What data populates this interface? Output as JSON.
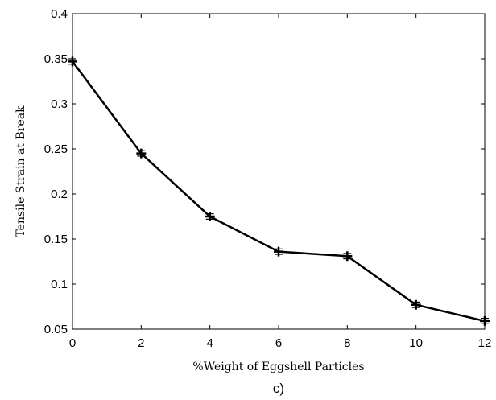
{
  "chart_data": {
    "type": "line",
    "title": "",
    "xlabel": "%Weight of Eggshell Particles",
    "ylabel": "Tensile Strain at Break",
    "panel_label": "c)",
    "xlim": [
      0,
      12
    ],
    "ylim": [
      0.05,
      0.4
    ],
    "x_ticks": [
      "0",
      "2",
      "4",
      "6",
      "8",
      "10",
      "12"
    ],
    "y_ticks": [
      "0.05",
      "0.1",
      "0.15",
      "0.2",
      "0.25",
      "0.3",
      "0.35",
      "0.4"
    ],
    "grid": false,
    "series": [
      {
        "x": [
          0,
          2,
          4,
          6,
          8,
          10,
          12
        ],
        "y": [
          0.347,
          0.245,
          0.175,
          0.136,
          0.131,
          0.077,
          0.059
        ],
        "error": [
          0.003,
          0.003,
          0.003,
          0.003,
          0.003,
          0.003,
          0.003
        ]
      }
    ],
    "line_color": "#000000",
    "marker": "plus"
  }
}
